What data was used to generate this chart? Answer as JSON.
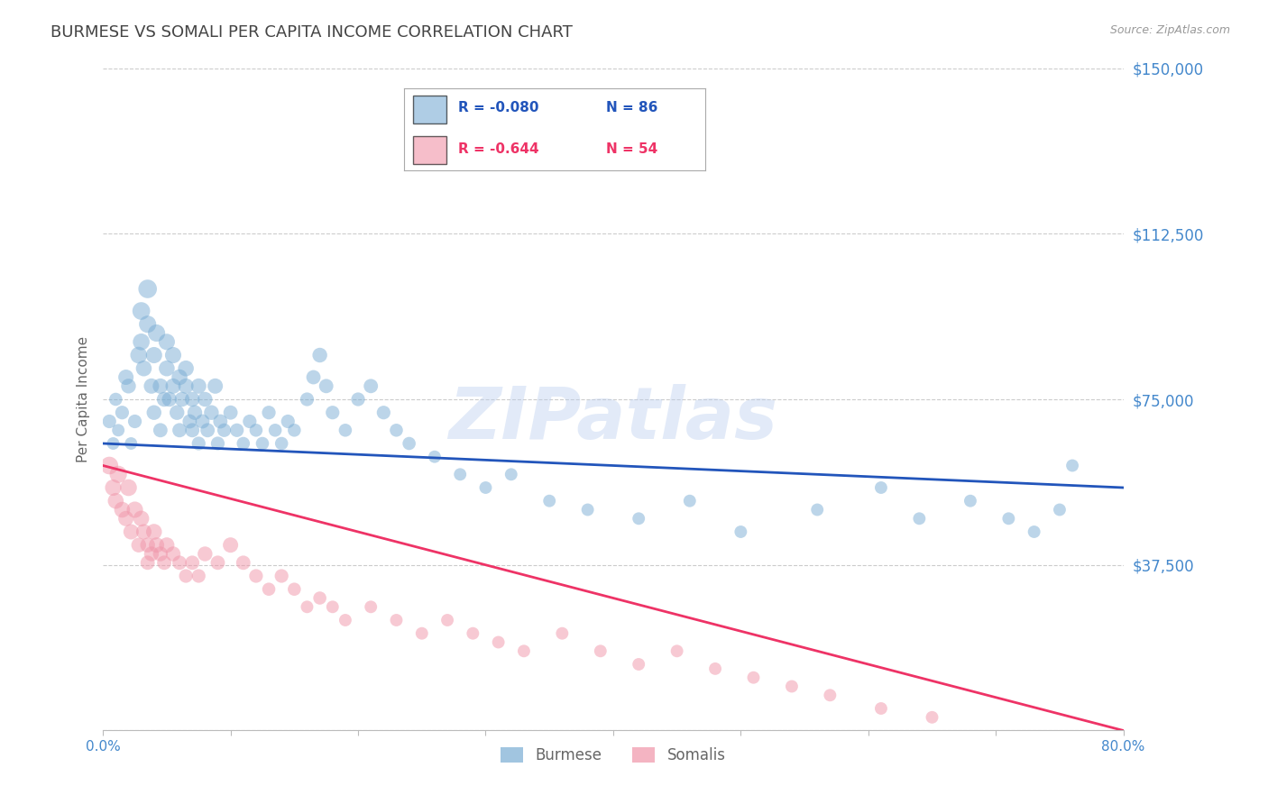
{
  "title": "BURMESE VS SOMALI PER CAPITA INCOME CORRELATION CHART",
  "source": "Source: ZipAtlas.com",
  "ylabel": "Per Capita Income",
  "xlim": [
    0.0,
    0.8
  ],
  "ylim": [
    0,
    150000
  ],
  "yticks": [
    0,
    37500,
    75000,
    112500,
    150000
  ],
  "ytick_labels": [
    "",
    "$37,500",
    "$75,000",
    "$112,500",
    "$150,000"
  ],
  "xticks": [
    0.0,
    0.1,
    0.2,
    0.3,
    0.4,
    0.5,
    0.6,
    0.7,
    0.8
  ],
  "xtick_labels": [
    "0.0%",
    "",
    "",
    "",
    "",
    "",
    "",
    "",
    "80.0%"
  ],
  "burmese_color": "#7aadd4",
  "somali_color": "#f094a8",
  "burmese_line_color": "#2255bb",
  "somali_line_color": "#ee3366",
  "R_burmese": -0.08,
  "N_burmese": 86,
  "R_somali": -0.644,
  "N_somali": 54,
  "legend_labels": [
    "Burmese",
    "Somalis"
  ],
  "watermark": "ZIPatlas",
  "background_color": "#ffffff",
  "grid_color": "#cccccc",
  "title_color": "#444444",
  "axis_label_color": "#666666",
  "tick_label_color": "#4488cc",
  "source_color": "#999999",
  "burmese_line_y0": 65000,
  "burmese_line_y1": 55000,
  "somali_line_y0": 60000,
  "somali_line_y1": 0,
  "burmese_x": [
    0.005,
    0.008,
    0.01,
    0.012,
    0.015,
    0.018,
    0.02,
    0.022,
    0.025,
    0.028,
    0.03,
    0.03,
    0.032,
    0.035,
    0.035,
    0.038,
    0.04,
    0.04,
    0.042,
    0.045,
    0.045,
    0.048,
    0.05,
    0.05,
    0.052,
    0.055,
    0.055,
    0.058,
    0.06,
    0.06,
    0.062,
    0.065,
    0.065,
    0.068,
    0.07,
    0.07,
    0.072,
    0.075,
    0.075,
    0.078,
    0.08,
    0.082,
    0.085,
    0.088,
    0.09,
    0.092,
    0.095,
    0.1,
    0.105,
    0.11,
    0.115,
    0.12,
    0.125,
    0.13,
    0.135,
    0.14,
    0.145,
    0.15,
    0.16,
    0.165,
    0.17,
    0.175,
    0.18,
    0.19,
    0.2,
    0.21,
    0.22,
    0.23,
    0.24,
    0.26,
    0.28,
    0.3,
    0.32,
    0.35,
    0.38,
    0.42,
    0.46,
    0.5,
    0.56,
    0.61,
    0.64,
    0.68,
    0.71,
    0.73,
    0.75,
    0.76
  ],
  "burmese_y": [
    70000,
    65000,
    75000,
    68000,
    72000,
    80000,
    78000,
    65000,
    70000,
    85000,
    95000,
    88000,
    82000,
    100000,
    92000,
    78000,
    85000,
    72000,
    90000,
    78000,
    68000,
    75000,
    88000,
    82000,
    75000,
    85000,
    78000,
    72000,
    80000,
    68000,
    75000,
    82000,
    78000,
    70000,
    75000,
    68000,
    72000,
    78000,
    65000,
    70000,
    75000,
    68000,
    72000,
    78000,
    65000,
    70000,
    68000,
    72000,
    68000,
    65000,
    70000,
    68000,
    65000,
    72000,
    68000,
    65000,
    70000,
    68000,
    75000,
    80000,
    85000,
    78000,
    72000,
    68000,
    75000,
    78000,
    72000,
    68000,
    65000,
    62000,
    58000,
    55000,
    58000,
    52000,
    50000,
    48000,
    52000,
    45000,
    50000,
    55000,
    48000,
    52000,
    48000,
    45000,
    50000,
    60000
  ],
  "somali_x": [
    0.005,
    0.008,
    0.01,
    0.012,
    0.015,
    0.018,
    0.02,
    0.022,
    0.025,
    0.028,
    0.03,
    0.032,
    0.035,
    0.035,
    0.038,
    0.04,
    0.042,
    0.045,
    0.048,
    0.05,
    0.055,
    0.06,
    0.065,
    0.07,
    0.075,
    0.08,
    0.09,
    0.1,
    0.11,
    0.12,
    0.13,
    0.14,
    0.15,
    0.16,
    0.17,
    0.18,
    0.19,
    0.21,
    0.23,
    0.25,
    0.27,
    0.29,
    0.31,
    0.33,
    0.36,
    0.39,
    0.42,
    0.45,
    0.48,
    0.51,
    0.54,
    0.57,
    0.61,
    0.65
  ],
  "somali_y": [
    60000,
    55000,
    52000,
    58000,
    50000,
    48000,
    55000,
    45000,
    50000,
    42000,
    48000,
    45000,
    42000,
    38000,
    40000,
    45000,
    42000,
    40000,
    38000,
    42000,
    40000,
    38000,
    35000,
    38000,
    35000,
    40000,
    38000,
    42000,
    38000,
    35000,
    32000,
    35000,
    32000,
    28000,
    30000,
    28000,
    25000,
    28000,
    25000,
    22000,
    25000,
    22000,
    20000,
    18000,
    22000,
    18000,
    15000,
    18000,
    14000,
    12000,
    10000,
    8000,
    5000,
    3000
  ],
  "burmese_sizes": [
    120,
    100,
    110,
    100,
    120,
    150,
    140,
    100,
    120,
    180,
    200,
    180,
    160,
    220,
    190,
    150,
    170,
    140,
    190,
    150,
    130,
    140,
    170,
    160,
    140,
    170,
    150,
    140,
    160,
    130,
    140,
    160,
    150,
    130,
    140,
    130,
    140,
    150,
    120,
    130,
    140,
    130,
    140,
    150,
    120,
    130,
    120,
    130,
    120,
    110,
    120,
    110,
    110,
    120,
    110,
    110,
    120,
    110,
    120,
    130,
    140,
    130,
    120,
    110,
    120,
    130,
    120,
    110,
    110,
    100,
    100,
    100,
    100,
    100,
    100,
    100,
    100,
    100,
    100,
    100,
    100,
    100,
    100,
    100,
    100,
    100
  ],
  "somali_sizes": [
    200,
    170,
    160,
    190,
    160,
    150,
    180,
    150,
    170,
    140,
    160,
    150,
    140,
    130,
    140,
    160,
    150,
    140,
    130,
    150,
    140,
    130,
    120,
    130,
    120,
    140,
    130,
    150,
    130,
    120,
    110,
    120,
    110,
    100,
    110,
    100,
    100,
    100,
    100,
    100,
    100,
    100,
    100,
    100,
    100,
    100,
    100,
    100,
    100,
    100,
    100,
    100,
    100,
    100
  ]
}
